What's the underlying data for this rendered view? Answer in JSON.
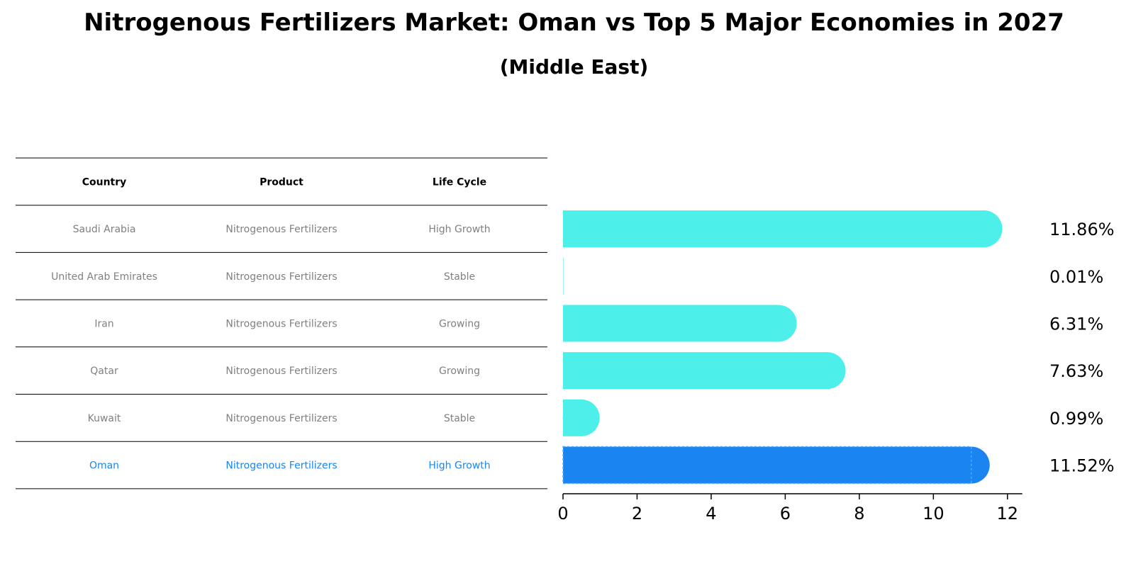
{
  "title": "Nitrogenous Fertilizers Market: Oman vs Top 5 Major Economies in 2027",
  "subtitle": "(Middle East)",
  "table": {
    "headers": [
      "Country",
      "Product",
      "Life Cycle"
    ],
    "rows": [
      {
        "country": "Saudi Arabia",
        "product": "Nitrogenous Fertilizers",
        "life_cycle": "High Growth"
      },
      {
        "country": "United Arab Emirates",
        "product": "Nitrogenous Fertilizers",
        "life_cycle": "Stable"
      },
      {
        "country": "Iran",
        "product": "Nitrogenous Fertilizers",
        "life_cycle": "Growing"
      },
      {
        "country": "Qatar",
        "product": "Nitrogenous Fertilizers",
        "life_cycle": "Growing"
      },
      {
        "country": "Kuwait",
        "product": "Nitrogenous Fertilizers",
        "life_cycle": "Stable"
      },
      {
        "country": "Oman",
        "product": "Nitrogenous Fertilizers",
        "life_cycle": "High Growth"
      }
    ],
    "highlight_row": "Oman"
  },
  "colors": {
    "bar": "#4cefea",
    "highlight_bar": "#1a85f0",
    "row_text": "#808080",
    "highlight_text": "#1a85f0",
    "header_text": "#000000"
  },
  "chart_data": {
    "type": "bar",
    "orientation": "horizontal",
    "categories": [
      "Saudi Arabia",
      "United Arab Emirates",
      "Iran",
      "Qatar",
      "Kuwait",
      "Oman"
    ],
    "values": [
      11.86,
      0.01,
      6.31,
      7.63,
      0.99,
      11.52
    ],
    "value_labels": [
      "11.86%",
      "0.01%",
      "6.31%",
      "7.63%",
      "0.99%",
      "11.52%"
    ],
    "xlim": [
      0,
      12.4
    ],
    "xticks": [
      0,
      2,
      4,
      6,
      8,
      10,
      12
    ],
    "grid": false
  }
}
